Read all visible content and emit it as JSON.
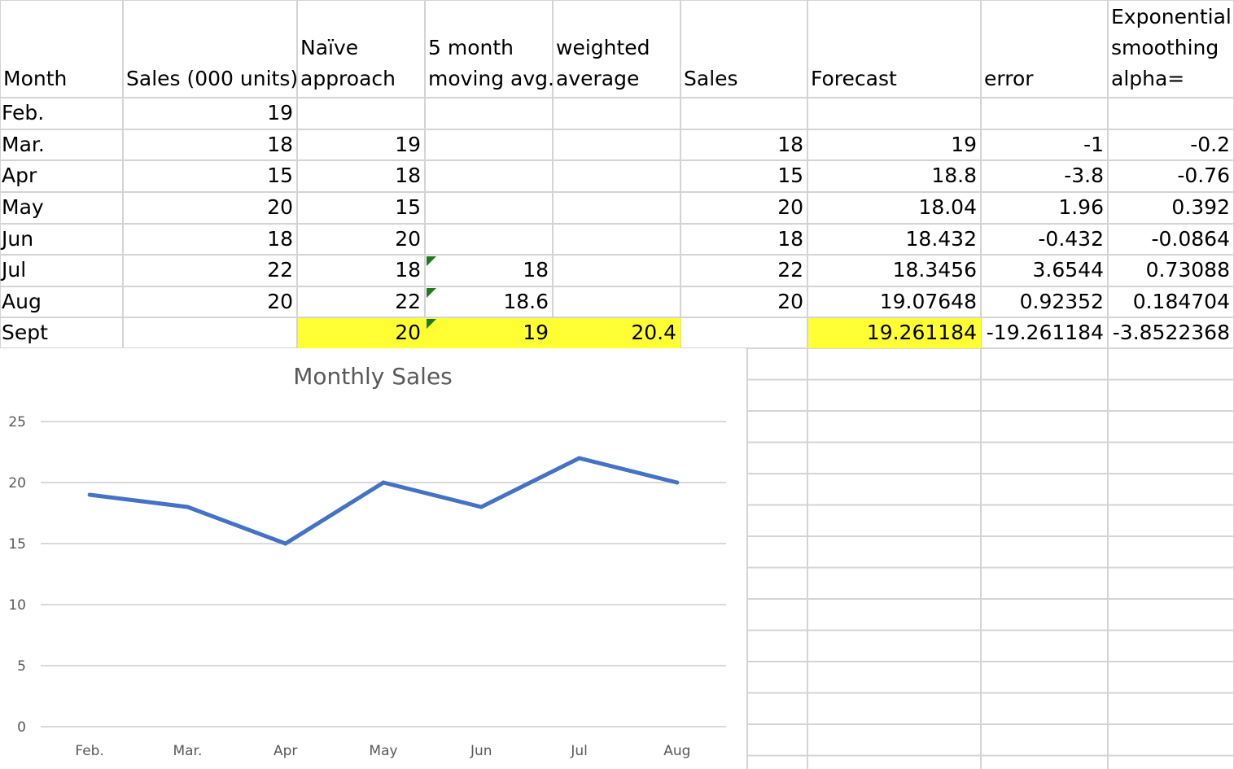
{
  "headers": [
    {
      "id": "A",
      "lines": [
        "Month"
      ]
    },
    {
      "id": "B",
      "lines": [
        "Sales (000 units)"
      ]
    },
    {
      "id": "C",
      "lines": [
        "Naïve",
        "approach"
      ]
    },
    {
      "id": "D",
      "lines": [
        "5 month",
        "moving avg."
      ]
    },
    {
      "id": "E",
      "lines": [
        "weighted",
        "average"
      ]
    },
    {
      "id": "F",
      "lines": [
        "Sales"
      ]
    },
    {
      "id": "G",
      "lines": [
        "Forecast"
      ]
    },
    {
      "id": "H",
      "lines": [
        "error"
      ]
    },
    {
      "id": "I",
      "lines": [
        "Exponential",
        "smoothing",
        "alpha="
      ]
    }
  ],
  "rows": [
    {
      "A": "Feb.",
      "B": "19",
      "C": "",
      "D": "",
      "E": "",
      "F": "",
      "G": "",
      "H": "",
      "I": ""
    },
    {
      "A": "Mar.",
      "B": "18",
      "C": "19",
      "D": "",
      "E": "",
      "F": "18",
      "G": "19",
      "H": "-1",
      "I": "-0.2"
    },
    {
      "A": "Apr",
      "B": "15",
      "C": "18",
      "D": "",
      "E": "",
      "F": "15",
      "G": "18.8",
      "H": "-3.8",
      "I": "-0.76"
    },
    {
      "A": "May",
      "B": "20",
      "C": "15",
      "D": "",
      "E": "",
      "F": "20",
      "G": "18.04",
      "H": "1.96",
      "I": "0.392"
    },
    {
      "A": "Jun",
      "B": "18",
      "C": "20",
      "D": "",
      "E": "",
      "F": "18",
      "G": "18.432",
      "H": "-0.432",
      "I": "-0.0864"
    },
    {
      "A": "Jul",
      "B": "22",
      "C": "18",
      "D": "18",
      "E": "",
      "F": "22",
      "G": "18.3456",
      "H": "3.6544",
      "I": "0.73088"
    },
    {
      "A": "Aug",
      "B": "20",
      "C": "22",
      "D": "18.6",
      "E": "",
      "F": "20",
      "G": "19.07648",
      "H": "0.92352",
      "I": "0.184704"
    },
    {
      "A": "Sept",
      "B": "",
      "C": "20",
      "D": "19",
      "E": "20.4",
      "F": "",
      "G": "19.261184",
      "H": "-19.261184",
      "I": "-3.8522368"
    }
  ],
  "highlight_color": "#ffff33",
  "chart_data": {
    "type": "line",
    "title": "Monthly Sales",
    "categories": [
      "Feb.",
      "Mar.",
      "Apr",
      "May",
      "Jun",
      "Jul",
      "Aug"
    ],
    "series": [
      {
        "values": [
          19,
          18,
          15,
          20,
          18,
          22,
          20
        ],
        "color": "#4472c4"
      }
    ],
    "ylim": [
      0,
      25
    ],
    "yticks": [
      0,
      5,
      10,
      15,
      20,
      25
    ],
    "grid": true,
    "legend": "none"
  }
}
